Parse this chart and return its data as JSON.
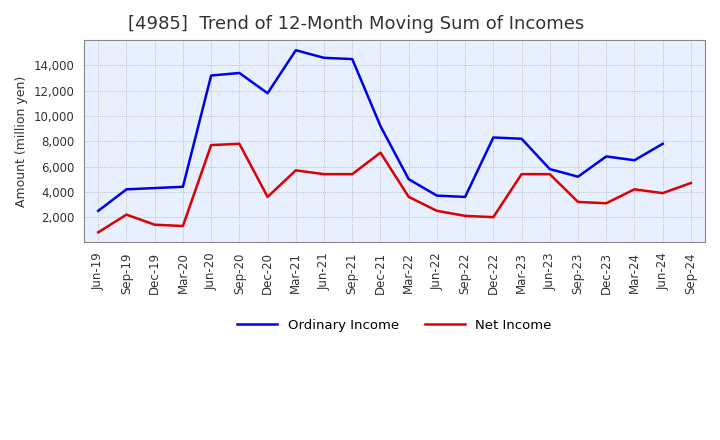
{
  "title": "[4985]  Trend of 12-Month Moving Sum of Incomes",
  "ylabel": "Amount (million yen)",
  "x_labels": [
    "Jun-19",
    "Sep-19",
    "Dec-19",
    "Mar-20",
    "Jun-20",
    "Sep-20",
    "Dec-20",
    "Mar-21",
    "Jun-21",
    "Sep-21",
    "Dec-21",
    "Mar-22",
    "Jun-22",
    "Sep-22",
    "Dec-22",
    "Mar-23",
    "Jun-23",
    "Sep-23",
    "Dec-23",
    "Mar-24",
    "Jun-24",
    "Sep-24"
  ],
  "ordinary_income": [
    2500,
    4200,
    4300,
    4400,
    13200,
    13400,
    11800,
    15200,
    14600,
    14500,
    9200,
    5000,
    3700,
    3600,
    8300,
    8200,
    5800,
    5200,
    6800,
    6500,
    7800,
    null
  ],
  "net_income": [
    800,
    2200,
    1400,
    1300,
    7700,
    7800,
    3600,
    5700,
    5400,
    5400,
    7100,
    3600,
    2500,
    2100,
    2000,
    5400,
    5400,
    3200,
    3100,
    4200,
    3900,
    4700
  ],
  "ordinary_color": "#0000ee",
  "net_color": "#dd0000",
  "background_color": "#ffffff",
  "plot_bg_color": "#e8f0ff",
  "grid_color": "#aaaaaa",
  "ylim": [
    0,
    16000
  ],
  "yticks": [
    2000,
    4000,
    6000,
    8000,
    10000,
    12000,
    14000
  ],
  "legend_labels": [
    "Ordinary Income",
    "Net Income"
  ],
  "title_fontsize": 13,
  "label_fontsize": 9,
  "tick_fontsize": 8.5,
  "title_color": "#333333"
}
